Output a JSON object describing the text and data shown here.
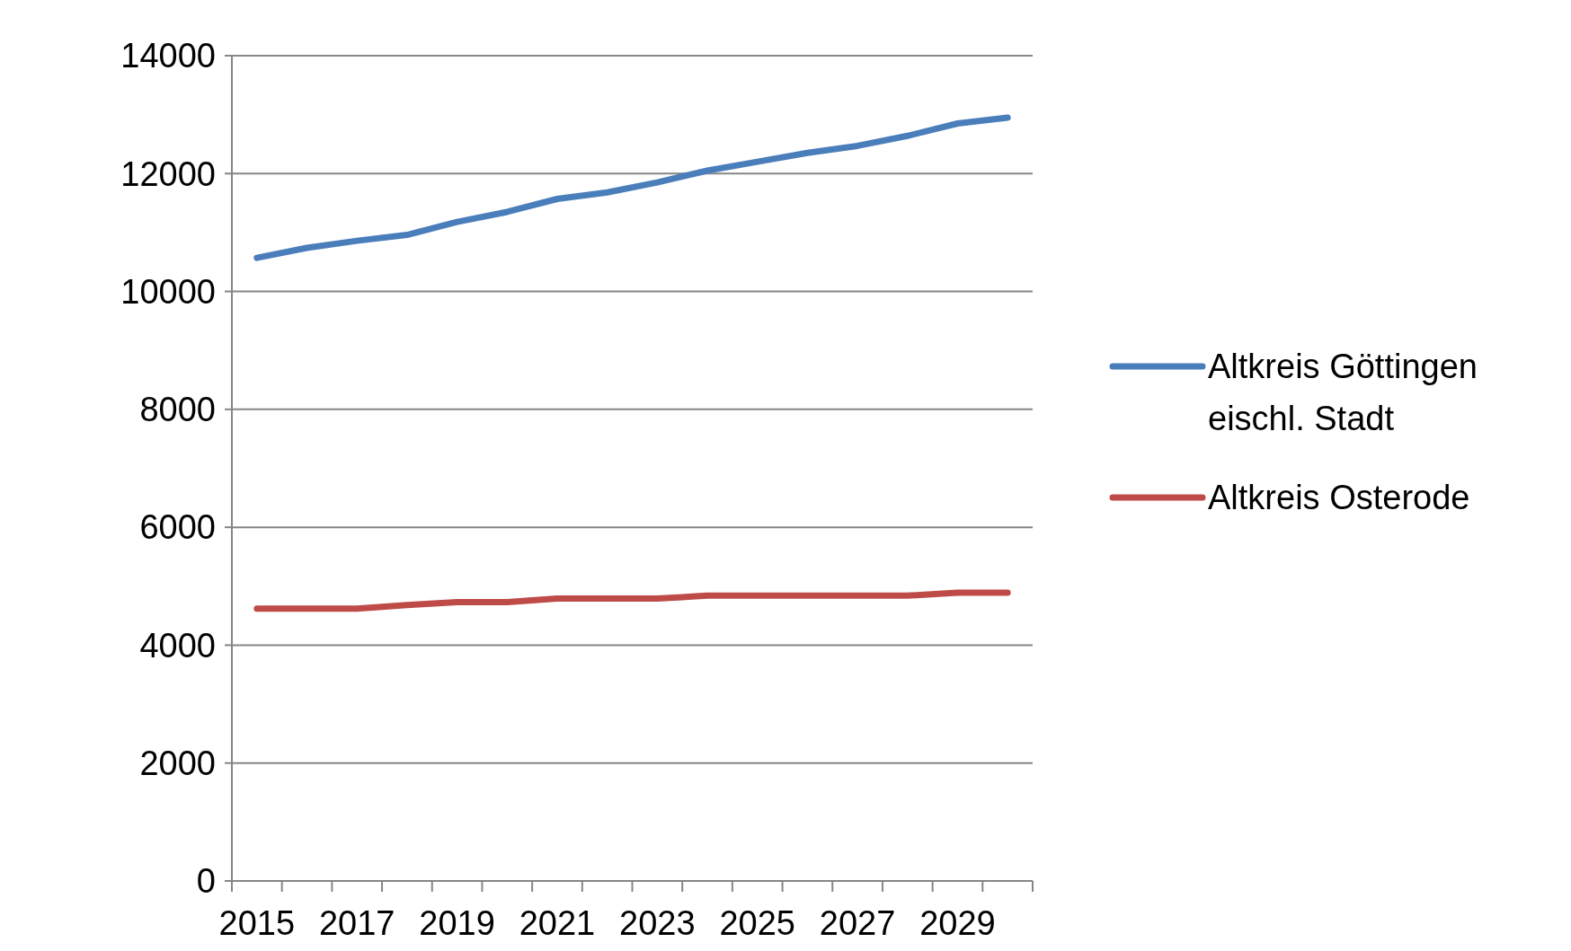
{
  "chart_data": {
    "type": "line",
    "categories": [
      "2015",
      null,
      "2017",
      null,
      "2019",
      null,
      "2021",
      null,
      "2023",
      null,
      "2025",
      null,
      "2027",
      null,
      "2029",
      null
    ],
    "series": [
      {
        "name": "Altkreis Göttingen eischl. Stadt",
        "color": "#4a7ebb",
        "values": [
          10570,
          10740,
          10860,
          10960,
          11180,
          11350,
          11570,
          11680,
          11850,
          12050,
          12200,
          12350,
          12470,
          12640,
          12850,
          12950
        ]
      },
      {
        "name": "Altkreis Osterode",
        "color": "#be4b48",
        "values": [
          4620,
          4620,
          4620,
          4680,
          4730,
          4730,
          4790,
          4790,
          4790,
          4840,
          4840,
          4840,
          4840,
          4840,
          4890,
          4890
        ]
      }
    ],
    "ylim": [
      0,
      14000
    ],
    "yticks": [
      0,
      2000,
      4000,
      6000,
      8000,
      10000,
      12000,
      14000
    ],
    "grid": "y",
    "legend": "right",
    "marker": "none",
    "line_style": "solid"
  }
}
